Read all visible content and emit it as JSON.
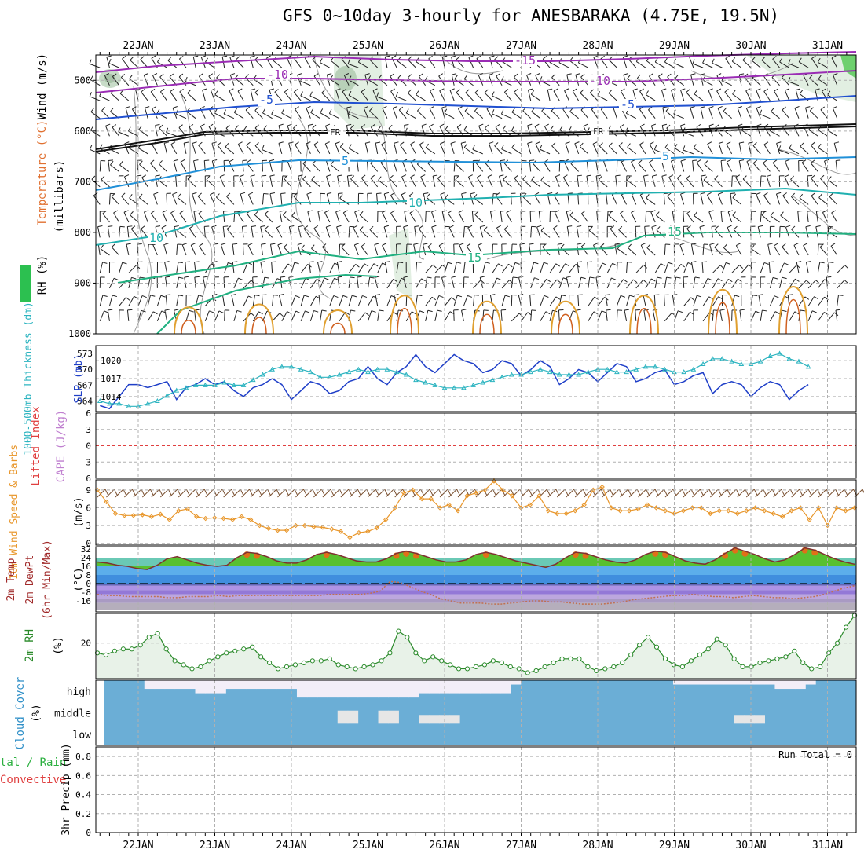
{
  "title": "GFS 0~10day 3-hourly for ANESBARAKA (4.75E, 19.5N)",
  "x_dates": [
    "22JAN",
    "23JAN",
    "24JAN",
    "25JAN",
    "26JAN",
    "27JAN",
    "28JAN",
    "29JAN",
    "30JAN",
    "31JAN"
  ],
  "colors": {
    "grid": "#b0b0b0",
    "slp": "#1f3fc8",
    "thick": "#2cb4c0",
    "wind10": "#e8962a",
    "rh": "#2a8a2a",
    "cloud": "#6baed6",
    "cloudgap": "#f3eef8",
    "temp_fill": "#58c030"
  },
  "panels": {
    "upper": {
      "ylabel_wind": "Wind (m/s)",
      "ylabel_temp": "Temperature (°C)",
      "ylabel_rh": "RH (%)",
      "ylabel_units": "(millibars)",
      "yticks": [
        "500",
        "600",
        "700",
        "800",
        "900",
        "1000"
      ],
      "isotherm_labels": [
        "-15",
        "-10",
        "-10",
        "-5",
        "-5",
        "FR",
        "FR",
        "5",
        "5",
        "10",
        "10",
        "15",
        "15"
      ]
    },
    "pressure": {
      "ylabel_thick": "1000-500mb Thickness (dm)",
      "ylabel_slp": "SLP (mb)",
      "yticks_left": [
        "573",
        "570",
        "567",
        "564"
      ],
      "yticks_right": [
        "1020",
        "1017",
        "1014"
      ]
    },
    "stability": {
      "ylabel_li": "Lifted Index",
      "ylabel_cape": "CAPE (J/kg)",
      "yticks": [
        "6",
        "3",
        "0",
        "3",
        "6"
      ]
    },
    "wind10": {
      "ylabel": "10m Wind Speed & Barbs",
      "unit": "(m/s)",
      "yticks": [
        "9",
        "6",
        "3",
        "0"
      ]
    },
    "temp2m": {
      "ylabel1": "2m Temp",
      "ylabel2": "2m DewPt",
      "ylabel3": "(6hr Min/Max)",
      "unit": "(°C)",
      "yticks": [
        "32",
        "24",
        "16",
        "8",
        "0",
        "-8",
        "-16"
      ]
    },
    "rh2m": {
      "ylabel": "2m RH",
      "unit": "(%)",
      "yticks": [
        "20"
      ]
    },
    "cloud": {
      "ylabel": "Cloud Cover",
      "unit": "(%)",
      "levels": [
        "high",
        "middle",
        "low"
      ]
    },
    "precip": {
      "ylabel1": "tal / Rain",
      "ylabel2": "Convective",
      "ylabel3": "3hr Precip (mm)",
      "yticks": [
        "0.8",
        "0.6",
        "0.4",
        "0.2",
        "0"
      ],
      "run_total": "Run Total = 0"
    }
  },
  "chart_data": {
    "type": "line",
    "x_start": "21JAN 12Z",
    "x_step_hours": 3,
    "slp_mb": [
      1012.5,
      1012,
      1014,
      1016,
      1016,
      1015.5,
      1016,
      1016.5,
      1013.5,
      1015.5,
      1016,
      1017,
      1016,
      1016.5,
      1015,
      1014,
      1015.5,
      1016,
      1017,
      1016,
      1013.5,
      1015,
      1016.5,
      1016,
      1014.5,
      1015,
      1016.5,
      1017,
      1019,
      1017,
      1016,
      1018,
      1019,
      1021,
      1019,
      1018,
      1019.5,
      1021,
      1020,
      1019.5,
      1018,
      1018.5,
      1020,
      1019.5,
      1017.5,
      1018.5,
      1020,
      1019,
      1016,
      1017,
      1018.5,
      1018,
      1016.5,
      1018,
      1019.5,
      1019,
      1016.5,
      1017,
      1018,
      1018.5,
      1016,
      1016.5,
      1017.5,
      1018,
      1014.5,
      1016,
      1016.5,
      1016,
      1014,
      1015.5,
      1016.5,
      1016,
      1013.5,
      1015,
      1016
    ],
    "thickness_dm": [
      564,
      563.5,
      563.5,
      563,
      563,
      563.5,
      564,
      565,
      566,
      566.5,
      567,
      567,
      567,
      567.5,
      567,
      567,
      568,
      569,
      570,
      570.5,
      570.5,
      570,
      569.5,
      568.5,
      568.5,
      569,
      569.5,
      570,
      569.5,
      570,
      570,
      569.5,
      569,
      568,
      567.5,
      567,
      566.5,
      566.5,
      566.5,
      567,
      567.5,
      568,
      568.5,
      569,
      569,
      569.5,
      570,
      569.5,
      569,
      569,
      569,
      569.5,
      570,
      570,
      569.5,
      569.5,
      570,
      570.5,
      570.5,
      570,
      569.5,
      569.5,
      570,
      571,
      572,
      572,
      571.5,
      571,
      571,
      571.5,
      572.5,
      573,
      572,
      571.5,
      570.5
    ],
    "wind10_ms": [
      9,
      7,
      5,
      4.7,
      4.7,
      4.8,
      4.5,
      4.9,
      4,
      5.5,
      5.8,
      4.5,
      4.2,
      4.3,
      4.2,
      4,
      4.5,
      4,
      3,
      2.5,
      2.2,
      2.2,
      3,
      3,
      2.8,
      2.7,
      2.4,
      2,
      1,
      1.8,
      2,
      2.6,
      4,
      6,
      8.5,
      9,
      7.5,
      7.5,
      6,
      6.5,
      5.5,
      8,
      8.5,
      9,
      10.5,
      9,
      8,
      6,
      6.5,
      8,
      5.5,
      5,
      5,
      5.5,
      6.5,
      9,
      9.5,
      6,
      5.5,
      5.5,
      5.8,
      6.5,
      6,
      5.5,
      5,
      5.5,
      6,
      6,
      5,
      5.5,
      5.5,
      5,
      5.5,
      6,
      5.5,
      5,
      4.5,
      5.5,
      6,
      4,
      6,
      3,
      6,
      5.5,
      6
    ],
    "temp2m_c": [
      20,
      19,
      17,
      16,
      14,
      13,
      17,
      23,
      25,
      22,
      19,
      17,
      16,
      17,
      24,
      29,
      28,
      25,
      21,
      19,
      19,
      22,
      27,
      29,
      27,
      24,
      21,
      20,
      20,
      23,
      28,
      30,
      28,
      25,
      22,
      20,
      20,
      22,
      27,
      29,
      27,
      24,
      21,
      19,
      17,
      15,
      18,
      24,
      29,
      28,
      25,
      22,
      20,
      19,
      22,
      27,
      30,
      29,
      25,
      21,
      19,
      18,
      22,
      28,
      33,
      30,
      27,
      23,
      20,
      22,
      27,
      33,
      31,
      27,
      23,
      20,
      18
    ],
    "dewpt2m_c": [
      -10,
      -11,
      -11,
      -12,
      -12,
      -12,
      -12,
      -13,
      -13,
      -12,
      -12,
      -12,
      -11,
      -12,
      -11,
      -11,
      -11,
      -11,
      -11,
      -11,
      -11,
      -11,
      -11,
      -10,
      -10,
      -10,
      -10,
      -9,
      -7,
      2,
      1,
      -3,
      -7,
      -10,
      -14,
      -16,
      -18,
      -18,
      -18,
      -19,
      -19,
      -18,
      -17,
      -16,
      -16,
      -17,
      -17,
      -18,
      -19,
      -19,
      -19,
      -18,
      -17,
      -15,
      -14,
      -13,
      -12,
      -11,
      -11,
      -10,
      -11,
      -12,
      -12,
      -13,
      -12,
      -11,
      -12,
      -13,
      -13,
      -14,
      -13,
      -12,
      -10,
      -7,
      -4,
      -2
    ],
    "rh2m_pct": [
      15,
      14,
      16,
      17,
      17,
      19,
      23,
      25,
      17,
      11,
      9,
      7,
      8,
      11,
      13,
      15,
      16,
      17,
      18,
      13,
      10,
      7,
      8,
      9,
      10,
      11,
      11,
      12,
      9,
      8,
      7,
      8,
      9,
      11,
      15,
      26,
      23,
      15,
      11,
      13,
      11,
      9,
      7,
      7,
      8,
      9,
      11,
      10,
      8,
      7,
      5,
      6,
      8,
      10,
      12,
      12,
      12,
      8,
      6,
      7,
      8,
      10,
      14,
      19,
      23,
      18,
      12,
      9,
      8,
      11,
      14,
      17,
      22,
      19,
      12,
      8,
      8,
      10,
      11,
      12,
      13,
      16,
      10,
      7,
      8,
      15,
      20,
      28,
      34
    ],
    "cloud_high_pct": [
      100,
      100,
      100,
      100,
      60,
      60,
      60,
      60,
      60,
      40,
      40,
      40,
      60,
      60,
      60,
      60,
      60,
      60,
      60,
      20,
      20,
      20,
      20,
      20,
      20,
      20,
      20,
      20,
      20,
      20,
      20,
      40,
      40,
      40,
      40,
      40,
      40,
      40,
      40,
      40,
      80,
      100,
      100,
      100,
      100,
      100,
      100,
      100,
      100,
      100,
      100,
      100,
      100,
      100,
      100,
      100,
      80,
      80,
      80,
      80,
      80,
      80,
      80,
      80,
      80,
      80,
      60,
      60,
      60,
      80,
      100,
      100,
      100,
      100
    ],
    "cloud_mid_pct": [
      100,
      100,
      100,
      100,
      100,
      100,
      100,
      100,
      100,
      100,
      100,
      100,
      100,
      100,
      100,
      100,
      100,
      100,
      100,
      100,
      100,
      100,
      100,
      40,
      40,
      100,
      100,
      40,
      40,
      100,
      100,
      60,
      60,
      60,
      60,
      100,
      100,
      100,
      100,
      100,
      100,
      100,
      100,
      100,
      100,
      100,
      100,
      100,
      100,
      100,
      100,
      100,
      100,
      100,
      100,
      100,
      100,
      100,
      100,
      100,
      100,
      100,
      60,
      60,
      60,
      100,
      100,
      100,
      100,
      100,
      100,
      100,
      100,
      100
    ],
    "precip_mm": [
      0,
      0,
      0,
      0,
      0,
      0,
      0,
      0,
      0,
      0,
      0,
      0,
      0,
      0,
      0,
      0,
      0,
      0,
      0,
      0,
      0,
      0,
      0,
      0,
      0,
      0,
      0,
      0,
      0,
      0,
      0,
      0,
      0,
      0,
      0,
      0,
      0,
      0,
      0,
      0,
      0,
      0,
      0,
      0,
      0,
      0,
      0,
      0,
      0,
      0,
      0,
      0,
      0,
      0,
      0,
      0,
      0,
      0,
      0,
      0,
      0,
      0,
      0,
      0,
      0,
      0,
      0,
      0,
      0,
      0,
      0,
      0,
      0,
      0,
      0
    ],
    "precip_ylim": [
      0,
      0.9
    ]
  }
}
